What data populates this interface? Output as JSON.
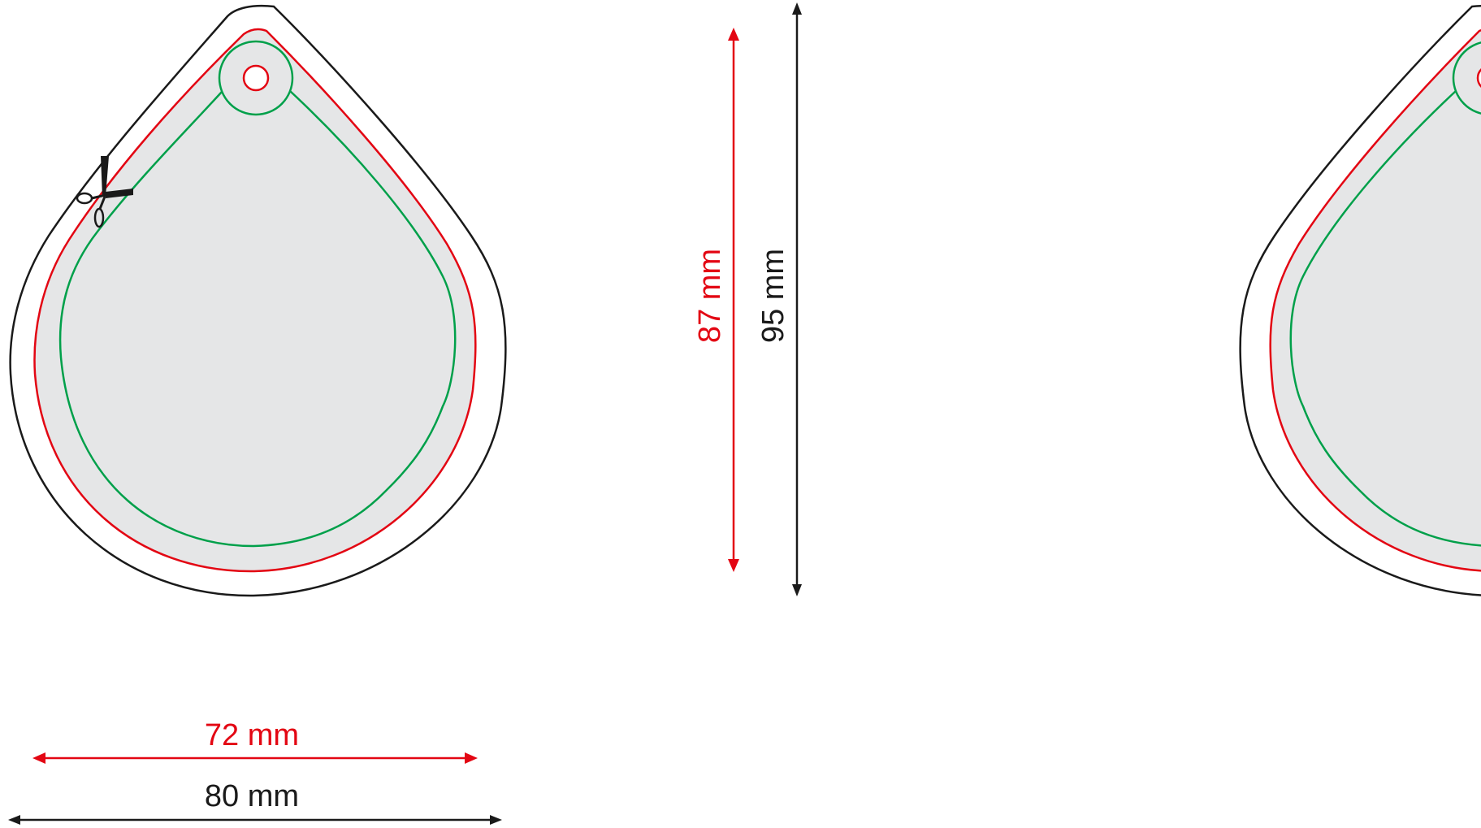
{
  "colors": {
    "outline": "#1a1a1a",
    "bleed": "#e30613",
    "safe_zone": "#00a04a",
    "fill": "#e5e6e7",
    "background": "#ffffff"
  },
  "icons": {
    "cut_mark": "scissors-icon"
  },
  "dimensions": {
    "inner_width": "72 mm",
    "outer_width": "80 mm",
    "inner_height": "87 mm",
    "outer_height": "95 mm"
  }
}
